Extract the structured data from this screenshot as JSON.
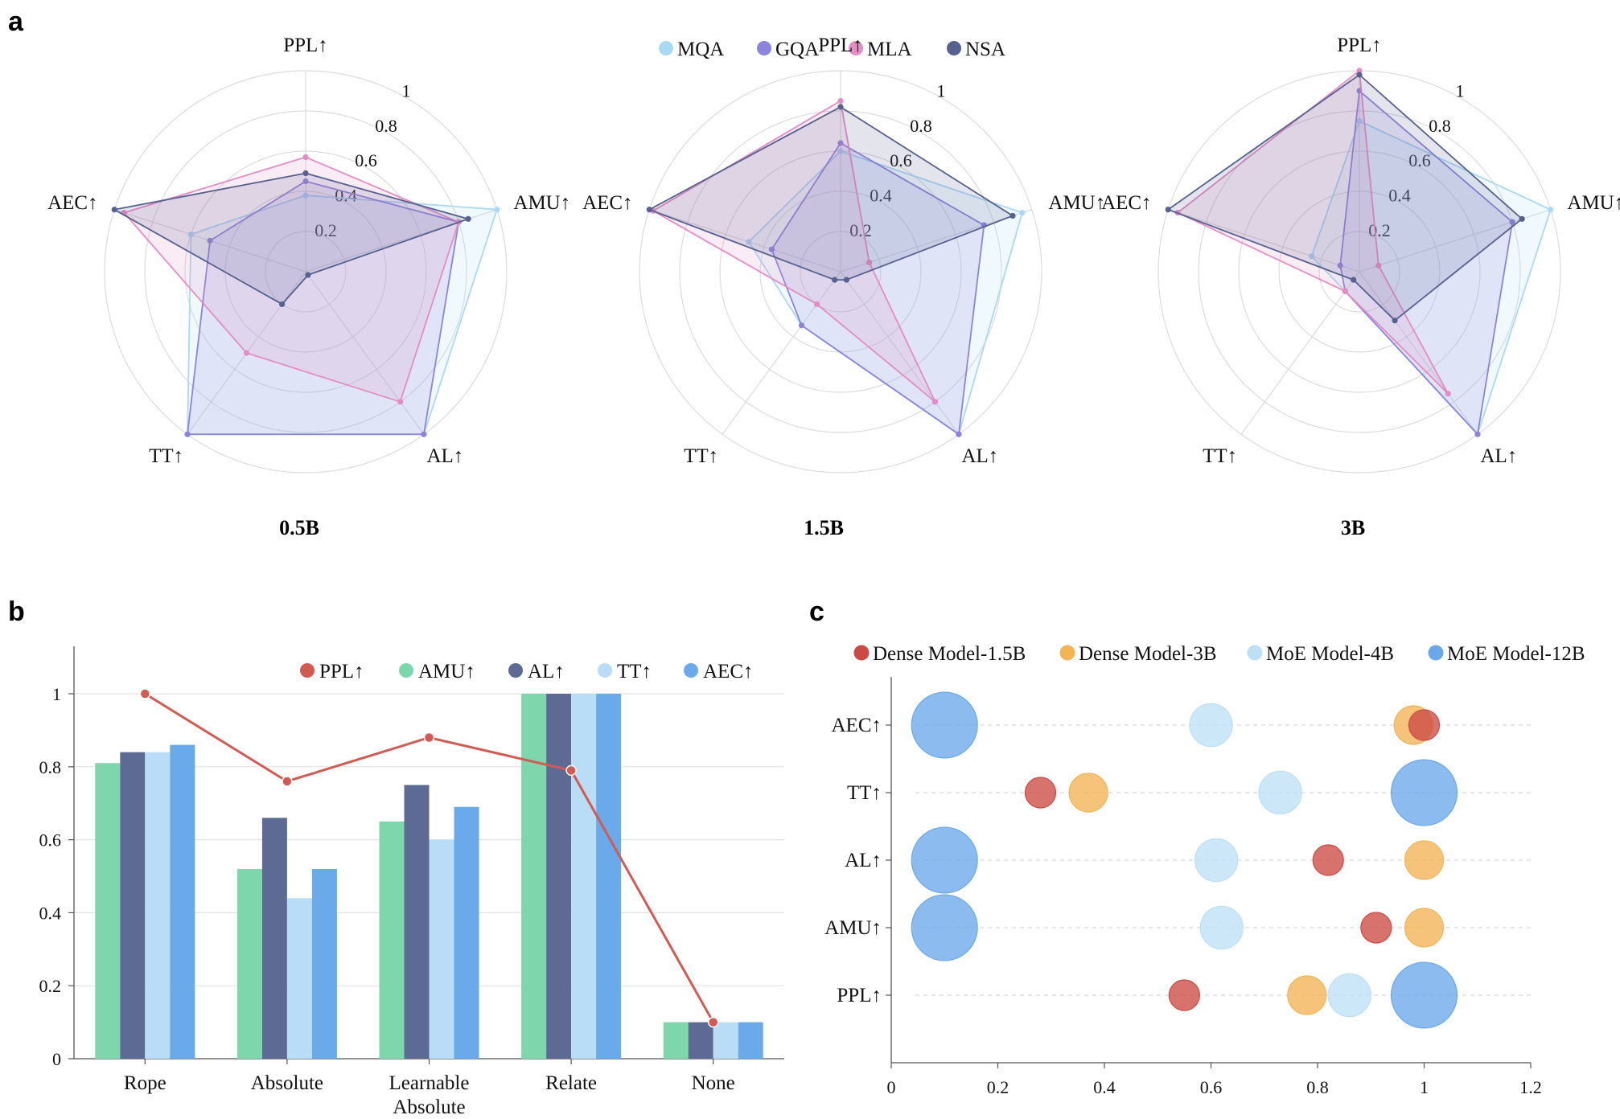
{
  "panels": {
    "a": "a",
    "b": "b",
    "c": "c"
  },
  "colors": {
    "MQA": "#a9d9f5",
    "GQA": "#8c84dc",
    "MLA": "#e48cc4",
    "NSA": "#56618f",
    "PPL": "#d35a52",
    "AMU": "#7ed6ad",
    "AL": "#5d6b94",
    "TT": "#b9ddf6",
    "AEC": "#6aa9ea",
    "Dense15": "#cc4a44",
    "Dense3": "#f2b455",
    "MoE4": "#bde0f6",
    "MoE12": "#6aa8ea"
  },
  "chart_data": [
    {
      "type": "radar",
      "id": "a",
      "axes": [
        "PPL↑",
        "AMU↑",
        "AL↑",
        "TT↑",
        "AEC↑"
      ],
      "rings": [
        "0.2",
        "0.4",
        "0.6",
        "0.8",
        "1"
      ],
      "legend": [
        "MQA",
        "GQA",
        "MLA",
        "NSA"
      ],
      "charts": [
        {
          "title": "0.5B",
          "series": [
            {
              "name": "MQA",
              "values": [
                0.38,
                1.0,
                1.0,
                1.0,
                0.6
              ]
            },
            {
              "name": "GQA",
              "values": [
                0.45,
                0.8,
                1.0,
                1.0,
                0.5
              ]
            },
            {
              "name": "MLA",
              "values": [
                0.57,
                0.8,
                0.8,
                0.5,
                0.95
              ]
            },
            {
              "name": "NSA",
              "values": [
                0.49,
                0.85,
                0.02,
                0.2,
                1.0
              ]
            }
          ]
        },
        {
          "title": "1.5B",
          "series": [
            {
              "name": "MQA",
              "values": [
                0.6,
                0.95,
                1.0,
                0.33,
                0.48
              ]
            },
            {
              "name": "GQA",
              "values": [
                0.64,
                0.75,
                1.0,
                0.33,
                0.36
              ]
            },
            {
              "name": "MLA",
              "values": [
                0.85,
                0.15,
                0.8,
                0.2,
                0.98
              ]
            },
            {
              "name": "NSA",
              "values": [
                0.82,
                0.9,
                0.05,
                0.05,
                1.0
              ]
            }
          ]
        },
        {
          "title": "3B",
          "series": [
            {
              "name": "MQA",
              "values": [
                0.75,
                1.0,
                1.0,
                0.12,
                0.25
              ]
            },
            {
              "name": "GQA",
              "values": [
                0.9,
                0.8,
                1.0,
                0.12,
                0.1
              ]
            },
            {
              "name": "MLA",
              "values": [
                1.0,
                0.1,
                0.75,
                0.12,
                0.95
              ]
            },
            {
              "name": "NSA",
              "values": [
                0.98,
                0.85,
                0.3,
                0.05,
                1.0
              ]
            }
          ]
        }
      ]
    },
    {
      "type": "bar",
      "id": "b",
      "categories": [
        [
          "Rope"
        ],
        [
          "Absolute"
        ],
        [
          "Learnable",
          "Absolute"
        ],
        [
          "Relate"
        ],
        [
          "None"
        ]
      ],
      "series": [
        {
          "name": "AMU↑",
          "key": "AMU",
          "values": [
            0.81,
            0.52,
            0.65,
            1.0,
            0.1
          ]
        },
        {
          "name": "AL↑",
          "key": "AL",
          "values": [
            0.84,
            0.66,
            0.75,
            1.0,
            0.1
          ]
        },
        {
          "name": "TT↑",
          "key": "TT",
          "values": [
            0.84,
            0.44,
            0.6,
            1.0,
            0.1
          ]
        },
        {
          "name": "AEC↑",
          "key": "AEC",
          "values": [
            0.86,
            0.52,
            0.69,
            1.0,
            0.1
          ]
        }
      ],
      "line": {
        "name": "PPL↑",
        "key": "PPL",
        "values": [
          1.0,
          0.76,
          0.88,
          0.79,
          0.1
        ]
      },
      "legend": [
        "PPL↑",
        "AMU↑",
        "AL↑",
        "TT↑",
        "AEC↑"
      ],
      "yticks": [
        "0",
        "0.2",
        "0.4",
        "0.6",
        "0.8",
        "1"
      ],
      "ylim": [
        0,
        1.13
      ]
    },
    {
      "type": "scatter",
      "id": "c",
      "categories": [
        "AEC↑",
        "TT↑",
        "AL↑",
        "AMU↑",
        "PPL↑"
      ],
      "xticks": [
        "0",
        "0.2",
        "0.4",
        "0.6",
        "0.8",
        "1",
        "1.2"
      ],
      "xlim": [
        0,
        1.2
      ],
      "legend": [
        "Dense Model-1.5B",
        "Dense Model-3B",
        "MoE Model-4B",
        "MoE Model-12B"
      ],
      "series": [
        {
          "name": "Dense Model-1.5B",
          "key": "Dense15",
          "size": 1.5,
          "values": [
            1.0,
            0.28,
            0.82,
            0.91,
            0.55
          ]
        },
        {
          "name": "Dense Model-3B",
          "key": "Dense3",
          "size": 3,
          "values": [
            0.98,
            0.37,
            1.0,
            1.0,
            0.78
          ]
        },
        {
          "name": "MoE Model-4B",
          "key": "MoE4",
          "size": 4,
          "values": [
            0.6,
            0.73,
            0.61,
            0.62,
            0.86
          ]
        },
        {
          "name": "MoE Model-12B",
          "key": "MoE12",
          "size": 12,
          "values": [
            0.1,
            1.0,
            0.1,
            0.1,
            1.0
          ]
        }
      ]
    }
  ]
}
